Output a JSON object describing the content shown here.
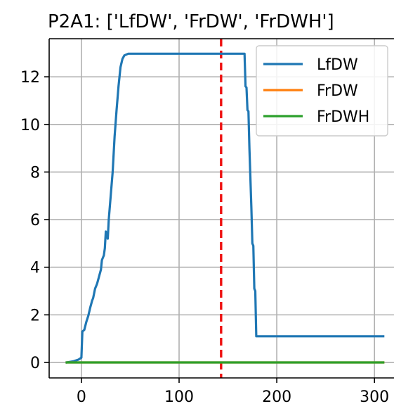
{
  "chart_data": {
    "type": "line",
    "title": "P2A1: ['LfDW', 'FrDW', 'FrDWH']",
    "xlabel": "",
    "ylabel": "",
    "xlim": [
      -33,
      320
    ],
    "ylim": [
      -0.65,
      13.6
    ],
    "xticks": [
      0,
      100,
      200,
      300
    ],
    "yticks": [
      0,
      2,
      4,
      6,
      8,
      10,
      12
    ],
    "xtick_labels": [
      "0",
      "100",
      "200",
      "300"
    ],
    "ytick_labels": [
      "0",
      "2",
      "4",
      "6",
      "8",
      "10",
      "12"
    ],
    "grid": true,
    "legend_position": "upper-right",
    "vline": {
      "x": 143,
      "color": "#ee1111",
      "style": "dashed"
    },
    "series": [
      {
        "name": "LfDW",
        "color": "#1f77b4",
        "points": [
          [
            -15,
            0
          ],
          [
            -8,
            0.05
          ],
          [
            -3,
            0.12
          ],
          [
            0,
            0.2
          ],
          [
            1,
            1.3
          ],
          [
            3,
            1.37
          ],
          [
            5,
            1.7
          ],
          [
            7,
            1.95
          ],
          [
            9,
            2.3
          ],
          [
            11,
            2.6
          ],
          [
            12,
            2.7
          ],
          [
            14,
            3.1
          ],
          [
            16,
            3.3
          ],
          [
            18,
            3.6
          ],
          [
            20,
            3.9
          ],
          [
            21,
            4.3
          ],
          [
            23,
            4.5
          ],
          [
            24,
            4.8
          ],
          [
            25,
            5.5
          ],
          [
            26,
            5.3
          ],
          [
            27,
            5.2
          ],
          [
            28,
            6.0
          ],
          [
            30,
            7.0
          ],
          [
            32,
            8.0
          ],
          [
            34,
            9.5
          ],
          [
            36,
            10.6
          ],
          [
            38,
            11.6
          ],
          [
            40,
            12.4
          ],
          [
            42,
            12.75
          ],
          [
            44,
            12.9
          ],
          [
            48,
            12.97
          ],
          [
            167,
            12.97
          ],
          [
            168,
            11.6
          ],
          [
            169,
            11.55
          ],
          [
            170,
            10.6
          ],
          [
            171,
            10.55
          ],
          [
            172,
            9.0
          ],
          [
            174,
            6.5
          ],
          [
            175,
            5.0
          ],
          [
            176,
            4.9
          ],
          [
            177,
            3.1
          ],
          [
            178,
            3.0
          ],
          [
            179,
            1.1
          ],
          [
            309,
            1.1
          ]
        ]
      },
      {
        "name": "FrDW",
        "color": "#ff7f0e",
        "points": [
          [
            -15,
            0
          ],
          [
            309,
            0
          ]
        ]
      },
      {
        "name": "FrDWH",
        "color": "#2ca02c",
        "points": [
          [
            -15,
            0
          ],
          [
            309,
            0
          ]
        ]
      }
    ]
  }
}
